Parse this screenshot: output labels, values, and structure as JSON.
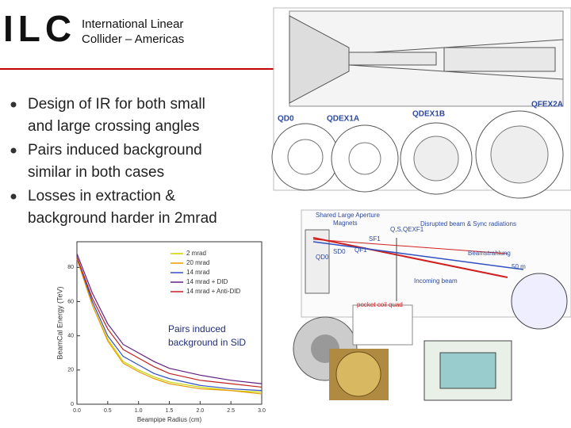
{
  "header": {
    "logo": "ILC",
    "org_lines": [
      "International Linear",
      "Collider – Americas"
    ]
  },
  "bullets": [
    [
      "Design of IR for both small",
      "and large crossing angles"
    ],
    [
      "Pairs induced background",
      "similar in both cases"
    ],
    [
      "Losses in extraction &",
      "background harder in 2mrad"
    ]
  ],
  "top_diagram": {
    "labels": [
      "QD0",
      "QDEX1A",
      "QDEX1B",
      "QFEX2A"
    ]
  },
  "layout_diagram": {
    "labels": [
      "Shared Large Aperture",
      "Magnets",
      "SF1",
      "QF1",
      "Q,S,QEXF1",
      "SD0",
      "QD0",
      "Disrupted beam & Sync radiations",
      "Beamstrahlung",
      "50 m",
      "Incoming beam",
      "pocket coil quad"
    ]
  },
  "chart_data": {
    "type": "line",
    "xlabel": "Beampipe Radius (cm)",
    "ylabel": "BeamCal Energy (TeV)",
    "annotation": [
      "Pairs induced",
      "background in SiD"
    ],
    "x": [
      0,
      0.25,
      0.5,
      0.75,
      1.0,
      1.25,
      1.5,
      2.0,
      2.5,
      3.0
    ],
    "series": [
      {
        "name": "2 mrad",
        "color": "#c8d400",
        "values": [
          85,
          58,
          38,
          25,
          20,
          16,
          13,
          10,
          8,
          7
        ]
      },
      {
        "name": "20 mrad",
        "color": "#e89a00",
        "values": [
          85,
          58,
          37,
          24,
          19,
          15,
          12,
          9,
          8,
          6
        ]
      },
      {
        "name": "14 mrad",
        "color": "#3050c0",
        "values": [
          86,
          60,
          40,
          28,
          23,
          18,
          15,
          11,
          9,
          8
        ]
      },
      {
        "name": "14 mrad + DID",
        "color": "#602080",
        "values": [
          88,
          65,
          47,
          35,
          30,
          25,
          21,
          17,
          14,
          12
        ]
      },
      {
        "name": "14 mrad + Anti-DID",
        "color": "#c02020",
        "values": [
          86,
          62,
          44,
          32,
          27,
          22,
          18,
          14,
          12,
          10
        ]
      }
    ],
    "xlim": [
      0,
      3
    ],
    "ylim": [
      0,
      95
    ],
    "xticks": [
      {
        "value": 0,
        "label": "0.0"
      },
      {
        "value": 0.5,
        "label": "0.5"
      },
      {
        "value": 1,
        "label": "1.0"
      },
      {
        "value": 1.5,
        "label": "1.5"
      },
      {
        "value": 2,
        "label": "2.0"
      },
      {
        "value": 2.5,
        "label": "2.5"
      },
      {
        "value": 3,
        "label": "3.0"
      }
    ],
    "yticks": [
      0,
      20,
      40,
      60,
      80
    ],
    "legend": "upper right"
  }
}
